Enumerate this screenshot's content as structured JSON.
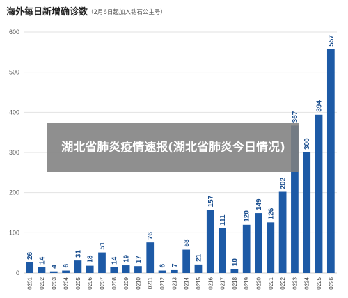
{
  "overlay_text": "湖北省肺炎疫情速报(湖北省肺炎今日情况)",
  "chart_data": {
    "type": "bar",
    "title": "海外每日新增确诊数",
    "subtitle": "（2月6日起加入钻石公主号）",
    "categories": [
      "0201",
      "0202",
      "0203",
      "0204",
      "0205",
      "0206",
      "0207",
      "0208",
      "0209",
      "0210",
      "0211",
      "0212",
      "0213",
      "0214",
      "0215",
      "0216",
      "0217",
      "0218",
      "0219",
      "0220",
      "0221",
      "0222",
      "0223",
      "0224",
      "0225",
      "0226"
    ],
    "values": [
      26,
      14,
      4,
      6,
      31,
      18,
      51,
      14,
      19,
      17,
      76,
      6,
      7,
      58,
      21,
      157,
      111,
      10,
      120,
      149,
      126,
      202,
      367,
      300,
      394,
      557
    ],
    "ylim": [
      0,
      600
    ],
    "yticks": [
      0,
      100,
      200,
      300,
      400,
      500,
      600
    ],
    "grid": true,
    "bar_color": "#1d5aa6"
  }
}
